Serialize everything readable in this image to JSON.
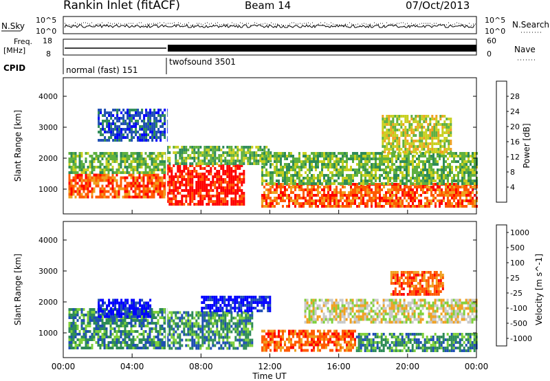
{
  "header": {
    "title": "Rankin Inlet (fitACF)",
    "beam": "Beam 14",
    "date": "07/Oct/2013"
  },
  "panels": {
    "nsky": {
      "label": "N.Sky",
      "ticks_left": [
        "10^5",
        "10^0"
      ],
      "ticks_right": [
        "10^5",
        "10^0"
      ],
      "right_label": "N.Search"
    },
    "freq": {
      "label_line1": "Freq.",
      "label_line2": "[MHz]",
      "ticks_left": [
        "18",
        "8"
      ],
      "ticks_right": [
        "60",
        "0"
      ],
      "right_label": "Nave"
    },
    "cpid": {
      "label": "CPID",
      "modes": [
        {
          "name": "normal (fast) 151",
          "start_h": 0,
          "end_h": 6
        },
        {
          "name": "twofsound 3501",
          "start_h": 6,
          "end_h": 24
        }
      ]
    }
  },
  "chart_data": [
    {
      "type": "heatmap",
      "name": "power",
      "ylabel": "Slant Range [km]",
      "xlabel": "Time UT",
      "xlim_hours": [
        0,
        24
      ],
      "ylim_km": [
        200,
        4600
      ],
      "x_ticks": [
        "00:00",
        "04:00",
        "08:00",
        "12:00",
        "16:00",
        "20:00",
        "00:00"
      ],
      "y_ticks": [
        1000,
        2000,
        3000,
        4000
      ],
      "colorbar": {
        "label": "Power [dB]",
        "ticks": [
          "28",
          "24",
          "20",
          "16",
          "12",
          "8",
          "4"
        ],
        "colors": [
          "#0000ff",
          "#1f4fb4",
          "#2e8b57",
          "#5fb040",
          "#c8d020",
          "#f0a020",
          "#ff5a00",
          "#ff0000"
        ]
      },
      "echo_regions": [
        {
          "t0": 0.3,
          "t1": 6.0,
          "r0": 700,
          "r1": 1500,
          "level": 6
        },
        {
          "t0": 0.3,
          "t1": 6.0,
          "r0": 1500,
          "r1": 2200,
          "level": 3
        },
        {
          "t0": 6.0,
          "t1": 10.5,
          "r0": 500,
          "r1": 1800,
          "level": 7
        },
        {
          "t0": 6.0,
          "t1": 12.0,
          "r0": 1800,
          "r1": 2400,
          "level": 3
        },
        {
          "t0": 11.5,
          "t1": 24.0,
          "r0": 400,
          "r1": 1200,
          "level": 6
        },
        {
          "t0": 11.5,
          "t1": 24.0,
          "r0": 1200,
          "r1": 2200,
          "level": 3
        },
        {
          "t0": 18.5,
          "t1": 22.5,
          "r0": 2200,
          "r1": 3400,
          "level": 4
        },
        {
          "t0": 2.0,
          "t1": 6.0,
          "r0": 2600,
          "r1": 3600,
          "level": 1
        }
      ]
    },
    {
      "type": "heatmap",
      "name": "velocity",
      "ylabel": "Slant Range [km]",
      "xlabel": "Time UT",
      "xlim_hours": [
        0,
        24
      ],
      "ylim_km": [
        200,
        4600
      ],
      "x_ticks": [
        "00:00",
        "04:00",
        "08:00",
        "12:00",
        "16:00",
        "20:00",
        "00:00"
      ],
      "y_ticks": [
        1000,
        2000,
        3000,
        4000
      ],
      "colorbar": {
        "label": "Velocity [m s^-1]",
        "ticks": [
          "1000",
          "500",
          "100",
          "25",
          "-25",
          "-100",
          "-500",
          "-1000"
        ],
        "colors": [
          "#ff0000",
          "#ff5a00",
          "#f0a020",
          "#c8c8c8",
          "#7fd03a",
          "#2e8b57",
          "#1f4fb4",
          "#0000ff"
        ]
      },
      "echo_regions": [
        {
          "t0": 0.3,
          "t1": 6.0,
          "r0": 500,
          "r1": 1800,
          "level": 5
        },
        {
          "t0": 2.0,
          "t1": 5.0,
          "r0": 1500,
          "r1": 2100,
          "level": 7
        },
        {
          "t0": 6.0,
          "t1": 11.0,
          "r0": 500,
          "r1": 1700,
          "level": 5
        },
        {
          "t0": 8.0,
          "t1": 12.0,
          "r0": 1700,
          "r1": 2200,
          "level": 7
        },
        {
          "t0": 11.5,
          "t1": 17.0,
          "r0": 400,
          "r1": 1100,
          "level": 1
        },
        {
          "t0": 14.0,
          "t1": 24.0,
          "r0": 1300,
          "r1": 2100,
          "level": 3
        },
        {
          "t0": 17.0,
          "t1": 24.0,
          "r0": 400,
          "r1": 1000,
          "level": 5
        },
        {
          "t0": 19.0,
          "t1": 22.0,
          "r0": 2200,
          "r1": 3000,
          "level": 1
        }
      ]
    }
  ]
}
